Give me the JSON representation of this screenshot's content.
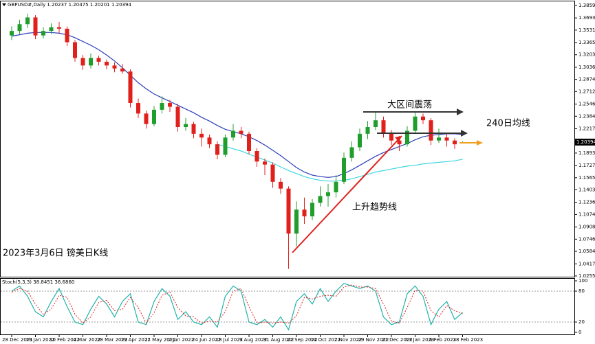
{
  "chart_data": {
    "type": "candlestick",
    "title": "GBPUSD#,Daily  1.20237 1.20475 1.20201 1.20394",
    "annotations": [
      "大区间震荡",
      "240日均线",
      "上升趋势线",
      "2023年3月6日 镑美日K线"
    ],
    "categories": [
      "28 Dec 2021",
      null,
      null,
      "19 Jan 2022",
      null,
      null,
      "10 Feb 2022",
      null,
      null,
      "4 Mar 2022",
      null,
      null,
      "28 Mar 2022",
      null,
      null,
      "19 Apr 2022",
      null,
      null,
      "11 May 2022",
      null,
      null,
      "2 Jun 2022",
      null,
      null,
      "24 Jun 2022",
      null,
      null,
      "18 Jul 2022",
      null,
      null,
      "9 Aug 2022",
      null,
      null,
      "31 Aug 2022",
      null,
      null,
      "22 Sep 2022",
      null,
      null,
      "14 Oct 2022",
      null,
      null,
      "7 Nov 2022",
      null,
      null,
      "29 Nov 2022",
      null,
      null,
      "21 Dec 2022",
      null,
      null,
      "13 Jan 2023",
      null,
      null,
      "6 Feb 2023",
      null,
      null,
      "28 Feb 2023"
    ],
    "open": [
      1.346,
      1.352,
      1.361,
      1.37,
      1.346,
      1.352,
      1.357,
      1.355,
      1.337,
      1.316,
      1.306,
      1.316,
      1.311,
      1.306,
      1.302,
      1.298,
      1.256,
      1.242,
      1.228,
      1.247,
      1.256,
      1.251,
      1.224,
      1.228,
      1.215,
      1.21,
      1.201,
      1.187,
      1.21,
      1.219,
      1.215,
      1.192,
      1.178,
      1.174,
      1.151,
      1.142,
      1.082,
      1.114,
      1.105,
      1.123,
      1.132,
      1.137,
      1.151,
      1.183,
      1.197,
      1.215,
      1.224,
      1.233,
      1.215,
      1.206,
      1.201,
      1.219,
      1.238,
      1.233,
      1.206,
      1.21,
      1.206,
      1.20237
    ],
    "high": [
      1.358,
      1.367,
      1.375,
      1.373,
      1.357,
      1.362,
      1.364,
      1.358,
      1.34,
      1.32,
      1.322,
      1.319,
      1.314,
      1.31,
      1.308,
      1.301,
      1.262,
      1.246,
      1.252,
      1.265,
      1.26,
      1.255,
      1.236,
      1.231,
      1.222,
      1.214,
      1.205,
      1.214,
      1.228,
      1.224,
      1.218,
      1.196,
      1.182,
      1.177,
      1.156,
      1.145,
      1.125,
      1.13,
      1.128,
      1.145,
      1.148,
      1.16,
      1.19,
      1.205,
      1.222,
      1.232,
      1.245,
      1.238,
      1.22,
      1.212,
      1.225,
      1.244,
      1.242,
      1.236,
      1.222,
      1.215,
      1.209,
      1.20475
    ],
    "low": [
      1.34,
      1.347,
      1.356,
      1.341,
      1.342,
      1.348,
      1.349,
      1.332,
      1.311,
      1.3,
      1.302,
      1.306,
      1.301,
      1.297,
      1.295,
      1.25,
      1.236,
      1.222,
      1.225,
      1.242,
      1.244,
      1.218,
      1.219,
      1.209,
      1.198,
      1.196,
      1.181,
      1.184,
      1.206,
      1.209,
      1.188,
      1.171,
      1.16,
      1.143,
      1.135,
      1.035,
      1.065,
      1.095,
      1.1,
      1.118,
      1.118,
      1.13,
      1.148,
      1.178,
      1.192,
      1.208,
      1.22,
      1.21,
      1.2,
      1.192,
      1.198,
      1.215,
      1.228,
      1.2,
      1.203,
      1.198,
      1.195,
      1.20201
    ],
    "close": [
      1.352,
      1.361,
      1.37,
      1.346,
      1.352,
      1.357,
      1.355,
      1.337,
      1.316,
      1.306,
      1.316,
      1.311,
      1.306,
      1.302,
      1.298,
      1.256,
      1.242,
      1.228,
      1.247,
      1.256,
      1.251,
      1.224,
      1.228,
      1.215,
      1.21,
      1.201,
      1.187,
      1.21,
      1.219,
      1.215,
      1.192,
      1.178,
      1.174,
      1.151,
      1.142,
      1.082,
      1.114,
      1.105,
      1.123,
      1.132,
      1.137,
      1.151,
      1.183,
      1.197,
      1.215,
      1.224,
      1.233,
      1.215,
      1.206,
      1.201,
      1.219,
      1.238,
      1.233,
      1.206,
      1.21,
      1.206,
      1.201,
      1.20394
    ],
    "up_color": "#1f9e2c",
    "down_color": "#e0201b",
    "series": [
      {
        "color": "#2b3fb8",
        "values": [
          1.345,
          1.347,
          1.349,
          1.35,
          1.35,
          1.35,
          1.349,
          1.347,
          1.343,
          1.338,
          1.333,
          1.327,
          1.32,
          1.312,
          1.303,
          1.293,
          1.283,
          1.275,
          1.268,
          1.263,
          1.258,
          1.253,
          1.248,
          1.243,
          1.237,
          1.232,
          1.226,
          1.221,
          1.218,
          1.215,
          1.211,
          1.206,
          1.2,
          1.193,
          1.186,
          1.178,
          1.17,
          1.164,
          1.16,
          1.158,
          1.157,
          1.158,
          1.162,
          1.167,
          1.173,
          1.179,
          1.185,
          1.19,
          1.194,
          1.198,
          1.202,
          1.207,
          1.211,
          1.213,
          1.214,
          1.215,
          1.215,
          1.214
        ]
      },
      {
        "color": "#3fd6e0",
        "values": [
          null,
          null,
          null,
          null,
          null,
          null,
          null,
          null,
          null,
          null,
          null,
          null,
          null,
          null,
          null,
          null,
          null,
          null,
          null,
          null,
          null,
          null,
          null,
          null,
          null,
          null,
          1.201,
          1.198,
          1.195,
          1.192,
          1.188,
          1.184,
          1.18,
          1.176,
          1.171,
          1.166,
          1.162,
          1.158,
          1.155,
          1.153,
          1.152,
          1.152,
          1.153,
          1.155,
          1.158,
          1.161,
          1.164,
          1.166,
          1.168,
          1.17,
          1.172,
          1.173,
          1.175,
          1.176,
          1.177,
          1.178,
          1.179,
          1.181
        ]
      }
    ],
    "ylim": [
      1.0246,
      1.3905
    ],
    "yticks": [
      1.38595,
      1.36935,
      1.35315,
      {
        "value": 1.3365,
        "label": "1.33650"
      },
      {
        "value": 1.3203,
        "label": "1.32030"
      },
      1.30365,
      1.28745,
      1.27125,
      {
        "value": 1.2546,
        "label": "1.25460"
      },
      {
        "value": 1.2384,
        "label": "1.23840"
      },
      1.22175,
      1.18935,
      {
        "value": 1.1727,
        "label": "1.17270"
      },
      {
        "value": 1.1565,
        "label": "1.15650"
      },
      {
        "value": 1.1403,
        "label": "1.14030"
      },
      1.12365,
      1.10745,
      {
        "value": 1.0908,
        "label": "1.09080"
      },
      {
        "value": 1.0746,
        "label": "1.07460"
      },
      {
        "value": 1.0584,
        "label": "1.05840"
      },
      1.04175,
      1.02555
    ],
    "current_price": 1.20394,
    "stoch": {
      "title": "Stoch(5,3,3) 38.8451 36.6860",
      "k": [
        80,
        90,
        70,
        40,
        30,
        60,
        85,
        50,
        20,
        15,
        45,
        70,
        55,
        30,
        60,
        75,
        20,
        15,
        60,
        85,
        70,
        25,
        40,
        20,
        15,
        30,
        10,
        70,
        90,
        80,
        20,
        15,
        25,
        10,
        30,
        5,
        60,
        75,
        55,
        85,
        60,
        80,
        95,
        90,
        85,
        90,
        80,
        30,
        15,
        20,
        75,
        90,
        70,
        15,
        45,
        60,
        25,
        38.8451
      ],
      "d": [
        78,
        85,
        80,
        55,
        35,
        45,
        72,
        68,
        35,
        18,
        30,
        58,
        62,
        42,
        45,
        68,
        48,
        18,
        38,
        72,
        78,
        48,
        32,
        30,
        18,
        22,
        20,
        40,
        80,
        85,
        50,
        18,
        20,
        18,
        20,
        18,
        32,
        68,
        65,
        70,
        72,
        70,
        88,
        92,
        88,
        88,
        85,
        55,
        22,
        18,
        48,
        82,
        80,
        42,
        30,
        52,
        42,
        36.686
      ],
      "k_color": "#20b2aa",
      "d_color": "#e0201b",
      "ylim": [
        0,
        100
      ],
      "yticks": [
        100,
        80,
        20,
        0
      ]
    }
  }
}
